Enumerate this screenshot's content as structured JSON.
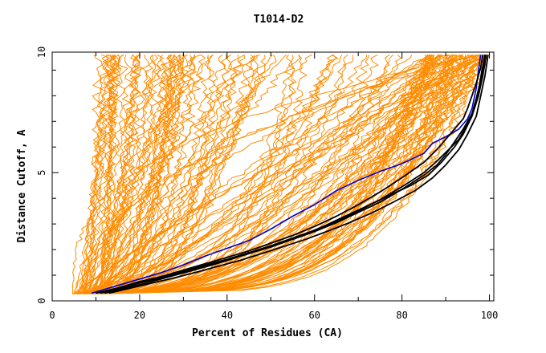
{
  "chart_data": {
    "type": "line",
    "title": "T1014-D2",
    "xlabel": "Percent of Residues (CA)",
    "ylabel": "Distance Cutoff, A",
    "xlim": [
      0,
      101
    ],
    "ylim": [
      0,
      9.7
    ],
    "xticks": [
      0,
      20,
      40,
      60,
      80,
      100
    ],
    "xtick_labels": [
      "0",
      "20",
      "40",
      "60",
      "80",
      "100"
    ],
    "yticks": [
      0,
      5,
      10
    ],
    "ytick_labels": [
      "0",
      "5",
      "10"
    ],
    "grid": false,
    "colors": {
      "background": "#ffffff",
      "axis": "#000000",
      "group": "#ff8c00",
      "highlight": "#0000cc",
      "reference": "#000000"
    },
    "series": [
      {
        "name": "highlight",
        "color": "#0000cc",
        "role": "highlight",
        "points": [
          [
            9,
            0.3
          ],
          [
            12,
            0.45
          ],
          [
            15,
            0.6
          ],
          [
            20,
            0.85
          ],
          [
            25,
            1.1
          ],
          [
            30,
            1.4
          ],
          [
            35,
            1.75
          ],
          [
            40,
            2.05
          ],
          [
            45,
            2.35
          ],
          [
            50,
            2.8
          ],
          [
            55,
            3.3
          ],
          [
            60,
            3.75
          ],
          [
            65,
            4.3
          ],
          [
            70,
            4.7
          ],
          [
            75,
            5.05
          ],
          [
            80,
            5.35
          ],
          [
            85,
            5.75
          ],
          [
            87,
            6.15
          ],
          [
            90,
            6.4
          ],
          [
            93,
            6.7
          ],
          [
            95,
            7.1
          ],
          [
            96,
            7.5
          ],
          [
            97,
            8.3
          ],
          [
            97.5,
            9.0
          ],
          [
            98,
            9.6
          ]
        ]
      },
      {
        "name": "reference-1",
        "color": "#000000",
        "role": "reference",
        "points": [
          [
            10,
            0.3
          ],
          [
            15,
            0.5
          ],
          [
            20,
            0.75
          ],
          [
            25,
            0.95
          ],
          [
            30,
            1.2
          ],
          [
            35,
            1.45
          ],
          [
            40,
            1.7
          ],
          [
            45,
            1.95
          ],
          [
            50,
            2.25
          ],
          [
            55,
            2.55
          ],
          [
            60,
            2.9
          ],
          [
            65,
            3.3
          ],
          [
            70,
            3.75
          ],
          [
            75,
            4.25
          ],
          [
            80,
            4.8
          ],
          [
            85,
            5.4
          ],
          [
            88,
            5.9
          ],
          [
            90,
            6.3
          ],
          [
            92,
            6.7
          ],
          [
            94,
            7.1
          ],
          [
            95,
            7.5
          ],
          [
            96,
            8.0
          ],
          [
            97,
            8.5
          ],
          [
            98,
            9.1
          ],
          [
            98.5,
            9.6
          ]
        ]
      },
      {
        "name": "reference-2",
        "color": "#000000",
        "role": "reference",
        "points": [
          [
            11,
            0.3
          ],
          [
            16,
            0.5
          ],
          [
            20,
            0.7
          ],
          [
            25,
            0.9
          ],
          [
            30,
            1.1
          ],
          [
            35,
            1.35
          ],
          [
            40,
            1.6
          ],
          [
            45,
            1.85
          ],
          [
            50,
            2.1
          ],
          [
            55,
            2.4
          ],
          [
            60,
            2.7
          ],
          [
            65,
            3.05
          ],
          [
            70,
            3.45
          ],
          [
            75,
            3.85
          ],
          [
            80,
            4.35
          ],
          [
            85,
            4.9
          ],
          [
            88,
            5.3
          ],
          [
            90,
            5.7
          ],
          [
            92,
            6.2
          ],
          [
            94,
            6.7
          ],
          [
            96,
            7.3
          ],
          [
            97,
            7.9
          ],
          [
            98,
            8.6
          ],
          [
            99,
            9.6
          ]
        ]
      },
      {
        "name": "reference-3",
        "color": "#000000",
        "role": "reference",
        "points": [
          [
            10,
            0.3
          ],
          [
            15,
            0.5
          ],
          [
            20,
            0.72
          ],
          [
            25,
            0.92
          ],
          [
            30,
            1.15
          ],
          [
            35,
            1.4
          ],
          [
            40,
            1.62
          ],
          [
            45,
            1.88
          ],
          [
            50,
            2.15
          ],
          [
            55,
            2.45
          ],
          [
            60,
            2.75
          ],
          [
            65,
            3.1
          ],
          [
            70,
            3.5
          ],
          [
            75,
            3.95
          ],
          [
            80,
            4.45
          ],
          [
            85,
            5.0
          ],
          [
            88,
            5.45
          ],
          [
            91,
            5.95
          ],
          [
            93,
            6.3
          ],
          [
            95,
            6.9
          ],
          [
            96.5,
            7.5
          ],
          [
            97.5,
            8.2
          ],
          [
            98.3,
            9.0
          ],
          [
            99,
            9.6
          ]
        ]
      },
      {
        "name": "reference-4",
        "color": "#000000",
        "role": "reference",
        "points": [
          [
            12,
            0.3
          ],
          [
            17,
            0.5
          ],
          [
            22,
            0.72
          ],
          [
            27,
            0.95
          ],
          [
            32,
            1.18
          ],
          [
            37,
            1.42
          ],
          [
            42,
            1.68
          ],
          [
            47,
            1.95
          ],
          [
            52,
            2.25
          ],
          [
            57,
            2.55
          ],
          [
            62,
            2.9
          ],
          [
            67,
            3.3
          ],
          [
            72,
            3.7
          ],
          [
            77,
            4.1
          ],
          [
            82,
            4.5
          ],
          [
            86,
            4.9
          ],
          [
            89,
            5.4
          ],
          [
            92,
            6.0
          ],
          [
            94,
            6.5
          ],
          [
            96,
            7.2
          ],
          [
            97.5,
            8.0
          ],
          [
            98.5,
            8.8
          ],
          [
            99.3,
            9.6
          ]
        ]
      },
      {
        "name": "reference-5",
        "color": "#000000",
        "role": "reference",
        "points": [
          [
            13,
            0.3
          ],
          [
            18,
            0.5
          ],
          [
            23,
            0.7
          ],
          [
            28,
            0.9
          ],
          [
            33,
            1.12
          ],
          [
            38,
            1.35
          ],
          [
            43,
            1.58
          ],
          [
            48,
            1.85
          ],
          [
            53,
            2.12
          ],
          [
            58,
            2.4
          ],
          [
            63,
            2.72
          ],
          [
            68,
            3.05
          ],
          [
            73,
            3.42
          ],
          [
            78,
            3.85
          ],
          [
            83,
            4.3
          ],
          [
            87,
            4.8
          ],
          [
            90,
            5.3
          ],
          [
            93,
            5.9
          ],
          [
            95,
            6.5
          ],
          [
            97,
            7.2
          ],
          [
            98,
            8.0
          ],
          [
            99,
            8.8
          ],
          [
            99.7,
            9.6
          ]
        ]
      }
    ]
  }
}
